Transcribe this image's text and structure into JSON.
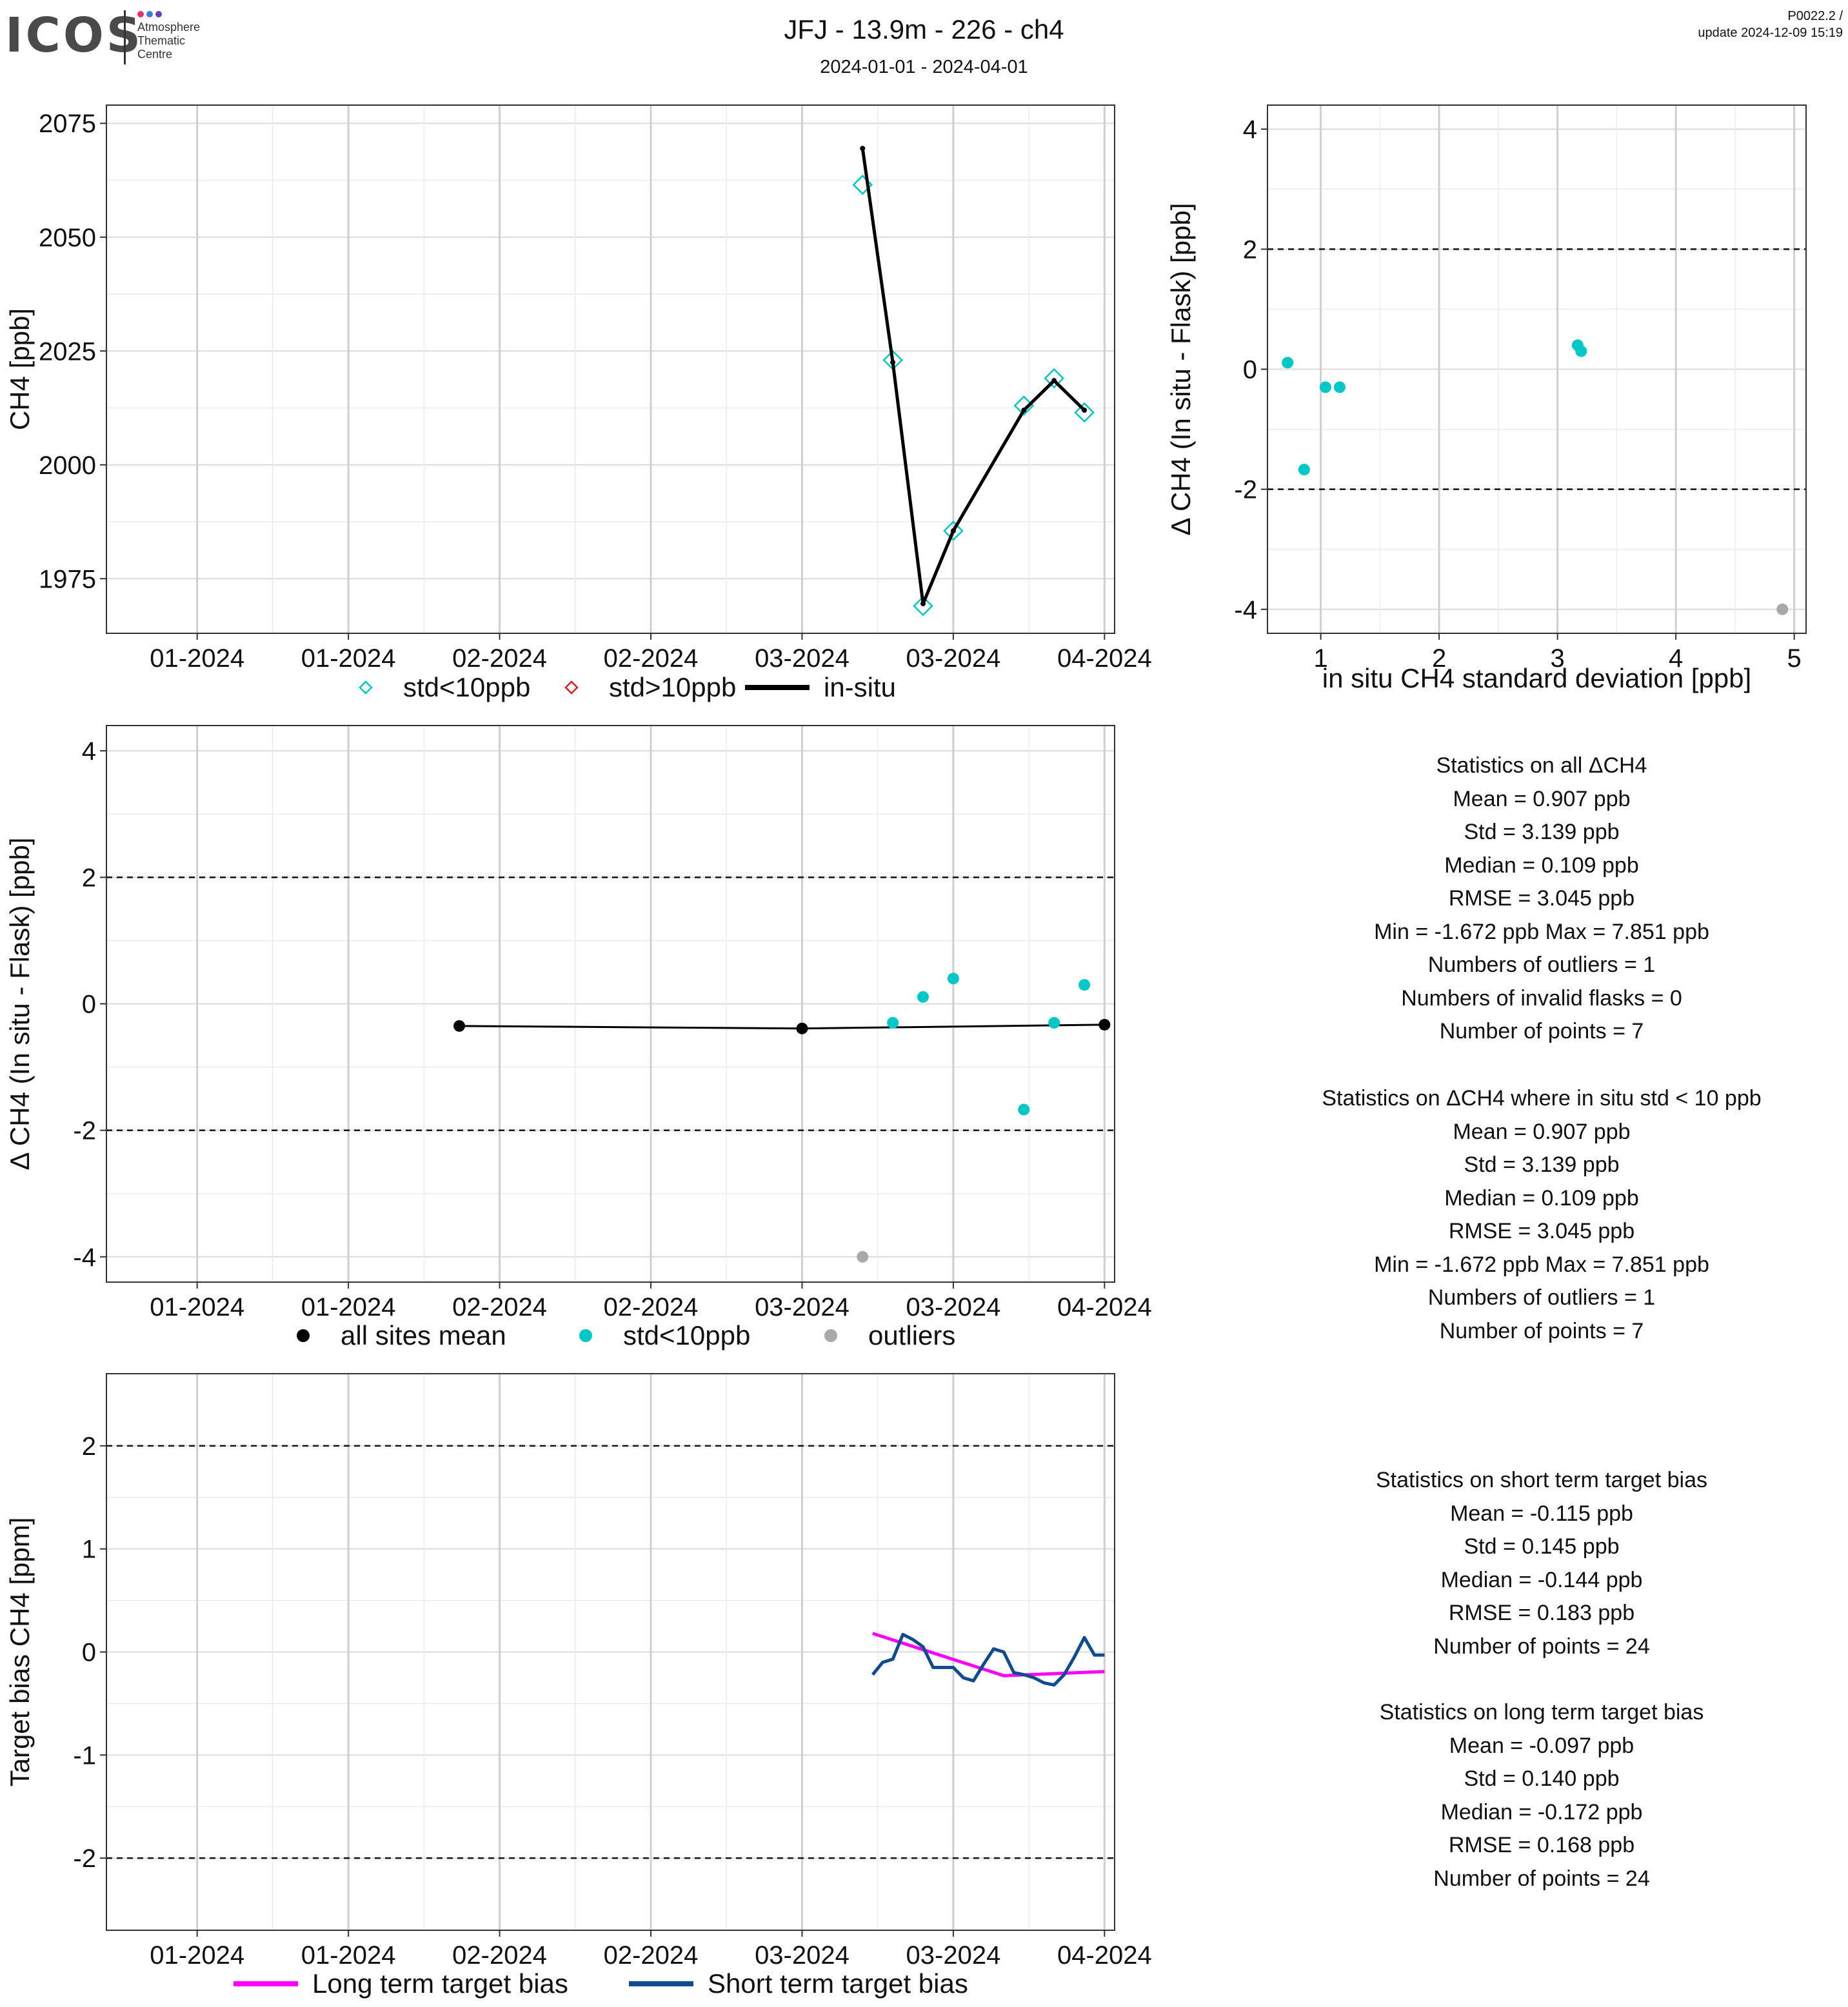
{
  "header": {
    "logo_word": "ICOS",
    "logo_lines": [
      "Atmosphere",
      "Thematic",
      "Centre"
    ],
    "logo_dot_colors": [
      "#e8336d",
      "#3e7fd9",
      "#6a3fb5"
    ],
    "title": "JFJ - 13.9m - 226 - ch4",
    "subtitle": "2024-01-01 - 2024-04-01",
    "version": "P0022.2 /",
    "update": "update  2024-12-09 15:19"
  },
  "colors": {
    "cyan": "#00c8c8",
    "red": "#e41a1c",
    "black": "#000000",
    "gray": "#a9a9a9",
    "magenta": "#ff00ff",
    "navy": "#0e4c8f"
  },
  "date_ticks": {
    "values": [
      "2024-01-01",
      "2024-01-16",
      "2024-01-31",
      "2024-02-15",
      "2024-03-01",
      "2024-03-16",
      "2024-03-31"
    ],
    "labels": [
      "01-2024",
      "01-2024",
      "02-2024",
      "02-2024",
      "03-2024",
      "03-2024",
      "04-2024"
    ]
  },
  "chart_data": [
    {
      "id": "timeseries-ch4",
      "type": "line",
      "ylabel": "CH4 [ppb]",
      "xlim": [
        "2023-12-23",
        "2024-04-01"
      ],
      "ylim": [
        1963,
        2079
      ],
      "yticks": [
        1975,
        2000,
        2025,
        2050,
        2075
      ],
      "grid": true,
      "series": [
        {
          "name": "std<10ppb",
          "kind": "flask-diamond",
          "color": "#00c8c8",
          "x": [
            "2024-03-07",
            "2024-03-10",
            "2024-03-13",
            "2024-03-16",
            "2024-03-23",
            "2024-03-26",
            "2024-03-29"
          ],
          "y": [
            2061.5,
            2023,
            1969,
            1985.5,
            2013,
            2019,
            2011.5
          ]
        },
        {
          "name": "std>10ppb",
          "kind": "flask-diamond",
          "color": "#e41a1c",
          "x": [],
          "y": []
        },
        {
          "name": "in-situ",
          "kind": "line",
          "color": "#000000",
          "x": [
            "2024-03-07",
            "2024-03-10",
            "2024-03-13",
            "2024-03-16",
            "2024-03-23",
            "2024-03-26",
            "2024-03-29"
          ],
          "y": [
            2069.5,
            2022.5,
            1969.5,
            1985.5,
            2012,
            2018.5,
            2012
          ]
        }
      ],
      "legend": "bottom"
    },
    {
      "id": "delta-vs-std",
      "type": "scatter",
      "xlabel": "in situ CH4 standard deviation [ppb]",
      "ylabel": "Δ CH4 (In situ - Flask) [ppb]",
      "xlim": [
        0.55,
        5.1
      ],
      "ylim": [
        -4.4,
        4.4
      ],
      "xticks": [
        1,
        2,
        3,
        4,
        5
      ],
      "yticks": [
        -4,
        -2,
        0,
        2,
        4
      ],
      "hlines": [
        2,
        -2
      ],
      "grid": true,
      "series": [
        {
          "name": "std<10ppb",
          "color": "#00c8c8",
          "x": [
            0.72,
            0.86,
            1.04,
            1.16,
            3.17,
            3.2
          ],
          "y": [
            0.109,
            -1.672,
            -0.3,
            -0.3,
            0.4,
            0.3
          ]
        },
        {
          "name": "outliers",
          "color": "#a9a9a9",
          "x": [
            4.9
          ],
          "y": [
            -4.0
          ]
        }
      ]
    },
    {
      "id": "delta-timeseries",
      "type": "scatter",
      "ylabel": "Δ CH4 (In situ - Flask) [ppb]",
      "xlim": [
        "2023-12-23",
        "2024-04-01"
      ],
      "ylim": [
        -4.4,
        4.4
      ],
      "yticks": [
        -4,
        -2,
        0,
        2,
        4
      ],
      "hlines": [
        2,
        -2
      ],
      "grid": true,
      "series": [
        {
          "name": "all sites mean",
          "kind": "line-points",
          "color": "#000000",
          "x": [
            "2024-01-27",
            "2024-03-01",
            "2024-03-31"
          ],
          "y": [
            -0.35,
            -0.39,
            -0.33
          ]
        },
        {
          "name": "std<10ppb",
          "color": "#00c8c8",
          "x": [
            "2024-03-10",
            "2024-03-13",
            "2024-03-16",
            "2024-03-23",
            "2024-03-26",
            "2024-03-29"
          ],
          "y": [
            -0.3,
            0.109,
            0.4,
            -1.672,
            -0.3,
            0.3
          ]
        },
        {
          "name": "outliers",
          "color": "#a9a9a9",
          "x": [
            "2024-03-07"
          ],
          "y": [
            -4.0
          ]
        }
      ],
      "legend": "bottom"
    },
    {
      "id": "target-bias",
      "type": "line",
      "ylabel": "Target bias CH4 [ppm]",
      "xlim": [
        "2023-12-23",
        "2024-04-01"
      ],
      "ylim": [
        -2.7,
        2.7
      ],
      "yticks": [
        -2,
        -1,
        0,
        1,
        2
      ],
      "hlines": [
        2,
        -2
      ],
      "grid": true,
      "series": [
        {
          "name": "Long term target bias",
          "color": "#ff00ff",
          "x": [
            "2024-03-08",
            "2024-03-21",
            "2024-03-31"
          ],
          "y": [
            0.18,
            -0.23,
            -0.19
          ]
        },
        {
          "name": "Short term target bias",
          "color": "#0e4c8f",
          "x": [
            "2024-03-08",
            "2024-03-09",
            "2024-03-10",
            "2024-03-11",
            "2024-03-12",
            "2024-03-13",
            "2024-03-14",
            "2024-03-15",
            "2024-03-16",
            "2024-03-17",
            "2024-03-18",
            "2024-03-19",
            "2024-03-20",
            "2024-03-21",
            "2024-03-22",
            "2024-03-23",
            "2024-03-24",
            "2024-03-25",
            "2024-03-26",
            "2024-03-27",
            "2024-03-28",
            "2024-03-29",
            "2024-03-30",
            "2024-03-31"
          ],
          "y": [
            -0.22,
            -0.1,
            -0.07,
            0.17,
            0.12,
            0.05,
            -0.15,
            -0.15,
            -0.15,
            -0.25,
            -0.28,
            -0.12,
            0.03,
            0.0,
            -0.2,
            -0.22,
            -0.25,
            -0.3,
            -0.32,
            -0.22,
            -0.05,
            0.14,
            -0.03,
            -0.03
          ]
        }
      ],
      "legend": "bottom"
    }
  ],
  "stats_panels": [
    {
      "id": "stats-all",
      "lines": [
        "Statistics on all ΔCH4",
        "Mean =  0.907 ppb",
        "Std =  3.139 ppb",
        "Median =  0.109 ppb",
        "RMSE =  3.045 ppb",
        "Min =  -1.672 ppb Max =  7.851 ppb",
        "Numbers of outliers =  1",
        "Numbers of invalid flasks =  0",
        "Number of points =  7"
      ]
    },
    {
      "id": "stats-std10",
      "lines": [
        "Statistics on ΔCH4 where in situ std < 10 ppb",
        "Mean =  0.907 ppb",
        "Std =  3.139 ppb",
        "Median =  0.109 ppb",
        "RMSE =  3.045 ppb",
        "Min =  -1.672 ppb Max =  7.851 ppb",
        "Numbers of outliers =  1",
        "Number of points =  7"
      ]
    },
    {
      "id": "stats-short",
      "lines": [
        "Statistics on short term target bias",
        "Mean =  -0.115 ppb",
        "Std =  0.145 ppb",
        "Median =  -0.144 ppb",
        "RMSE =  0.183 ppb",
        "Number of points =  24"
      ]
    },
    {
      "id": "stats-long",
      "lines": [
        "Statistics on long term target bias",
        "Mean =  -0.097 ppb",
        "Std =  0.140 ppb",
        "Median =  -0.172 ppb",
        "RMSE =  0.168 ppb",
        "Number of points =  24"
      ]
    }
  ]
}
